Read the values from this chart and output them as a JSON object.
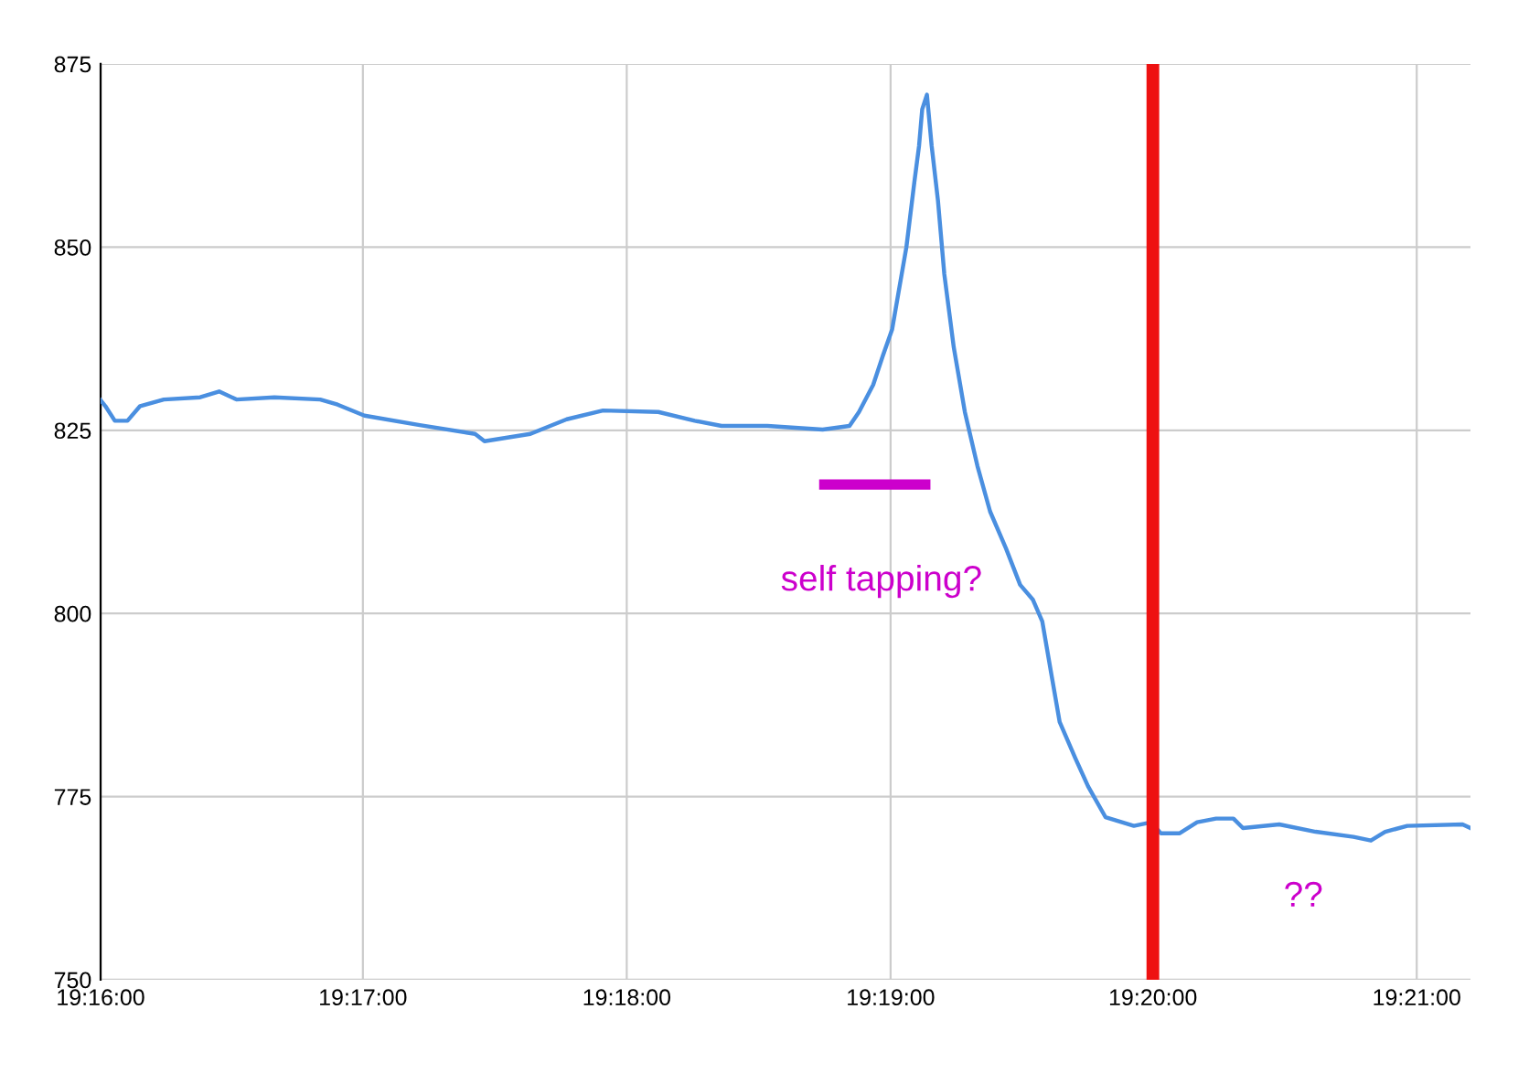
{
  "chart_data": {
    "type": "line",
    "series": [
      {
        "color": "#4a8fe0",
        "x": [
          19.2667,
          19.267,
          19.2676,
          19.2684,
          19.2692,
          19.2707,
          19.273,
          19.2742,
          19.2753,
          19.2777,
          19.2806,
          19.2817,
          19.2834,
          19.2869,
          19.2904,
          19.291,
          19.2939,
          19.2962,
          19.2985,
          19.302,
          19.3043,
          19.306,
          19.3089,
          19.3124,
          19.3141,
          19.3147,
          19.3156,
          19.3162,
          19.3168,
          19.3172,
          19.3177,
          19.3182,
          19.3185,
          19.3187,
          19.319,
          19.3193,
          19.3197,
          19.3201,
          19.3207,
          19.3214,
          19.3222,
          19.323,
          19.324,
          19.3249,
          19.3257,
          19.3263,
          19.3269,
          19.3274,
          19.3284,
          19.3292,
          19.3303,
          19.3321,
          19.3332,
          19.3338,
          19.335,
          19.3361,
          19.3373,
          19.3384,
          19.339,
          19.3413,
          19.3436,
          19.346,
          19.3471,
          19.348,
          19.3494,
          19.3529,
          19.3534
        ],
        "values": [
          829.1,
          828.3,
          826.3,
          826.3,
          828.3,
          829.2,
          829.5,
          830.3,
          829.2,
          829.5,
          829.2,
          828.5,
          827.0,
          825.7,
          824.5,
          823.5,
          824.5,
          826.5,
          827.7,
          827.5,
          826.3,
          825.6,
          825.6,
          825.1,
          825.6,
          827.5,
          831.2,
          835.1,
          838.8,
          843.8,
          850.0,
          858.8,
          863.8,
          868.8,
          870.8,
          863.8,
          856.3,
          846.3,
          836.3,
          827.5,
          820.1,
          813.9,
          808.9,
          803.9,
          801.9,
          798.9,
          791.4,
          785.2,
          780.2,
          776.4,
          772.2,
          771.0,
          771.5,
          770.0,
          770.0,
          771.5,
          772.0,
          772.0,
          770.7,
          771.2,
          770.2,
          769.5,
          769.0,
          770.2,
          771.0,
          771.2,
          770.7
        ]
      },
      {
        "color": "#cc00cc",
        "x": [
          19.3125,
          19.3189
        ],
        "values": [
          817.6,
          817.6
        ]
      }
    ],
    "ref_lines": [
      {
        "axis": "x",
        "value": 19.3333,
        "label": null,
        "color": "#ee1111"
      }
    ],
    "annotations": [
      "self tapping?",
      "??"
    ],
    "xlim": [
      19.2667,
      19.3534
    ],
    "xticks": [
      {
        "value": 19.2667,
        "label": "19:16:00"
      },
      {
        "value": 19.2833,
        "label": "19:17:00"
      },
      {
        "value": 19.3,
        "label": "19:18:00"
      },
      {
        "value": 19.3167,
        "label": "19:19:00"
      },
      {
        "value": 19.3333,
        "label": "19:20:00"
      },
      {
        "value": 19.35,
        "label": "19:21:00"
      }
    ],
    "ylim": [
      750,
      875
    ],
    "yticks": [
      750,
      775,
      800,
      825,
      850,
      875
    ],
    "grid": true,
    "legend": false,
    "marker": "none",
    "line_style": "solid"
  }
}
